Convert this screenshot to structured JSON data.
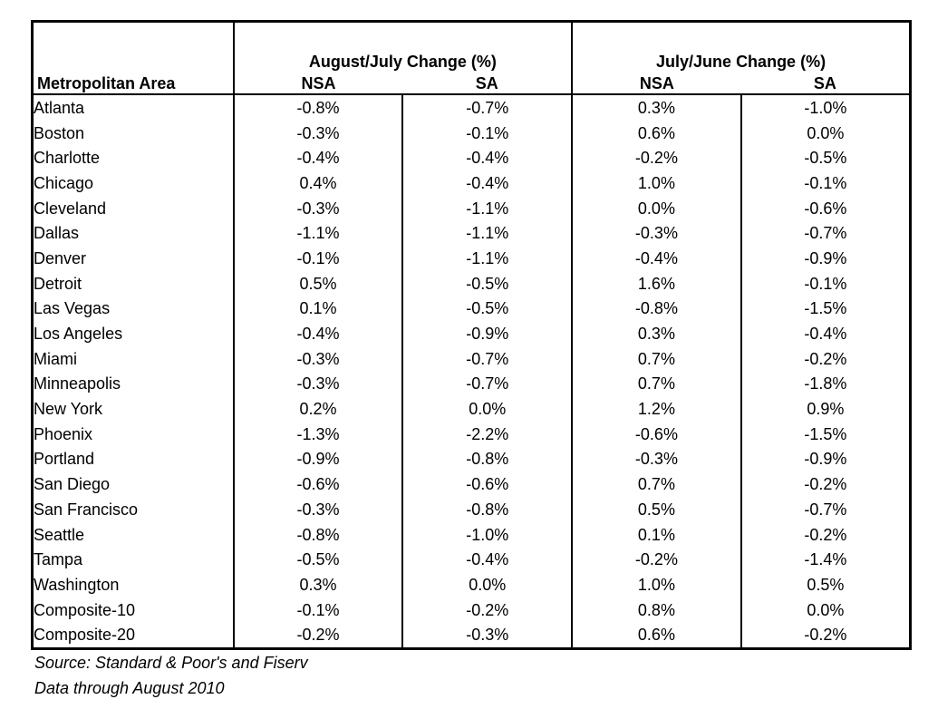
{
  "table": {
    "metro_header": "Metropolitan Area",
    "group1_header": "August/July Change (%)",
    "group2_header": "July/June Change (%)",
    "sub_nsa": "NSA",
    "sub_sa": "SA"
  },
  "chart_data": {
    "type": "table",
    "columns": [
      "Metropolitan Area",
      "August/July Change (%) NSA",
      "August/July Change (%) SA",
      "July/June Change (%) NSA",
      "July/June Change (%) SA"
    ],
    "rows": [
      [
        "Atlanta",
        "-0.8%",
        "-0.7%",
        "0.3%",
        "-1.0%"
      ],
      [
        "Boston",
        "-0.3%",
        "-0.1%",
        "0.6%",
        "0.0%"
      ],
      [
        "Charlotte",
        "-0.4%",
        "-0.4%",
        "-0.2%",
        "-0.5%"
      ],
      [
        "Chicago",
        "0.4%",
        "-0.4%",
        "1.0%",
        "-0.1%"
      ],
      [
        "Cleveland",
        "-0.3%",
        "-1.1%",
        "0.0%",
        "-0.6%"
      ],
      [
        "Dallas",
        "-1.1%",
        "-1.1%",
        "-0.3%",
        "-0.7%"
      ],
      [
        "Denver",
        "-0.1%",
        "-1.1%",
        "-0.4%",
        "-0.9%"
      ],
      [
        "Detroit",
        "0.5%",
        "-0.5%",
        "1.6%",
        "-0.1%"
      ],
      [
        "Las Vegas",
        "0.1%",
        "-0.5%",
        "-0.8%",
        "-1.5%"
      ],
      [
        "Los Angeles",
        "-0.4%",
        "-0.9%",
        "0.3%",
        "-0.4%"
      ],
      [
        "Miami",
        "-0.3%",
        "-0.7%",
        "0.7%",
        "-0.2%"
      ],
      [
        "Minneapolis",
        "-0.3%",
        "-0.7%",
        "0.7%",
        "-1.8%"
      ],
      [
        "New York",
        "0.2%",
        "0.0%",
        "1.2%",
        "0.9%"
      ],
      [
        "Phoenix",
        "-1.3%",
        "-2.2%",
        "-0.6%",
        "-1.5%"
      ],
      [
        "Portland",
        "-0.9%",
        "-0.8%",
        "-0.3%",
        "-0.9%"
      ],
      [
        "San Diego",
        "-0.6%",
        "-0.6%",
        "0.7%",
        "-0.2%"
      ],
      [
        "San Francisco",
        "-0.3%",
        "-0.8%",
        "0.5%",
        "-0.7%"
      ],
      [
        "Seattle",
        "-0.8%",
        "-1.0%",
        "0.1%",
        "-0.2%"
      ],
      [
        "Tampa",
        "-0.5%",
        "-0.4%",
        "-0.2%",
        "-1.4%"
      ],
      [
        "Washington",
        "0.3%",
        "0.0%",
        "1.0%",
        "0.5%"
      ],
      [
        "Composite-10",
        "-0.1%",
        "-0.2%",
        "0.8%",
        "0.0%"
      ],
      [
        "Composite-20",
        "-0.2%",
        "-0.3%",
        "0.6%",
        "-0.2%"
      ]
    ]
  },
  "footnotes": {
    "source": "Source: Standard & Poor's and Fiserv",
    "data_through": "Data through August 2010"
  }
}
